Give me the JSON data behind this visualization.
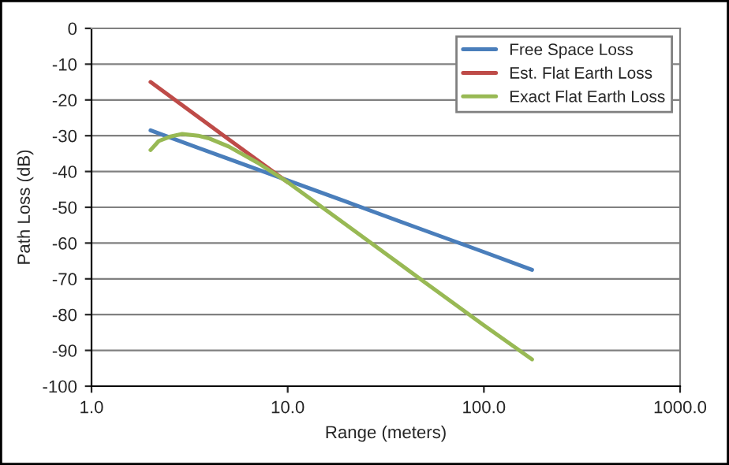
{
  "chart_data": {
    "type": "line",
    "xlabel": "Range (meters)",
    "ylabel": "Path Loss (dB)",
    "log": "x",
    "xlim": [
      1,
      1000
    ],
    "ylim": [
      -100,
      0
    ],
    "xticks": [
      {
        "value": 1,
        "label": "1.0"
      },
      {
        "value": 10,
        "label": "10.0"
      },
      {
        "value": 100,
        "label": "100.0"
      },
      {
        "value": 1000,
        "label": "1000.0"
      }
    ],
    "yticks": [
      -100,
      -90,
      -80,
      -70,
      -60,
      -50,
      -40,
      -30,
      -20,
      -10,
      0
    ],
    "grid": "y",
    "legend": "top right",
    "marker": "none",
    "line_style": "solid",
    "series": [
      {
        "name": "Free Space Loss",
        "color": "#4a7ebb",
        "x": [
          2,
          5,
          10,
          20,
          50,
          100,
          176
        ],
        "values": [
          -28.5,
          -36.5,
          -42.5,
          -48.5,
          -56.5,
          -62.5,
          -67.5
        ]
      },
      {
        "name": "Est. Flat Earth Loss",
        "color": "#be4b48",
        "x": [
          2,
          5,
          10
        ],
        "values": [
          -15,
          -31,
          -43
        ]
      },
      {
        "name": "Exact Flat Earth Loss",
        "color": "#98b954",
        "x": [
          2,
          2.2,
          2.5,
          2.9,
          3.5,
          4,
          5,
          7,
          10,
          20,
          50,
          100,
          176
        ],
        "values": [
          -34,
          -31.5,
          -30.3,
          -29.5,
          -30,
          -30.8,
          -33,
          -37.5,
          -43,
          -55,
          -71,
          -83,
          -92.5
        ]
      }
    ]
  }
}
